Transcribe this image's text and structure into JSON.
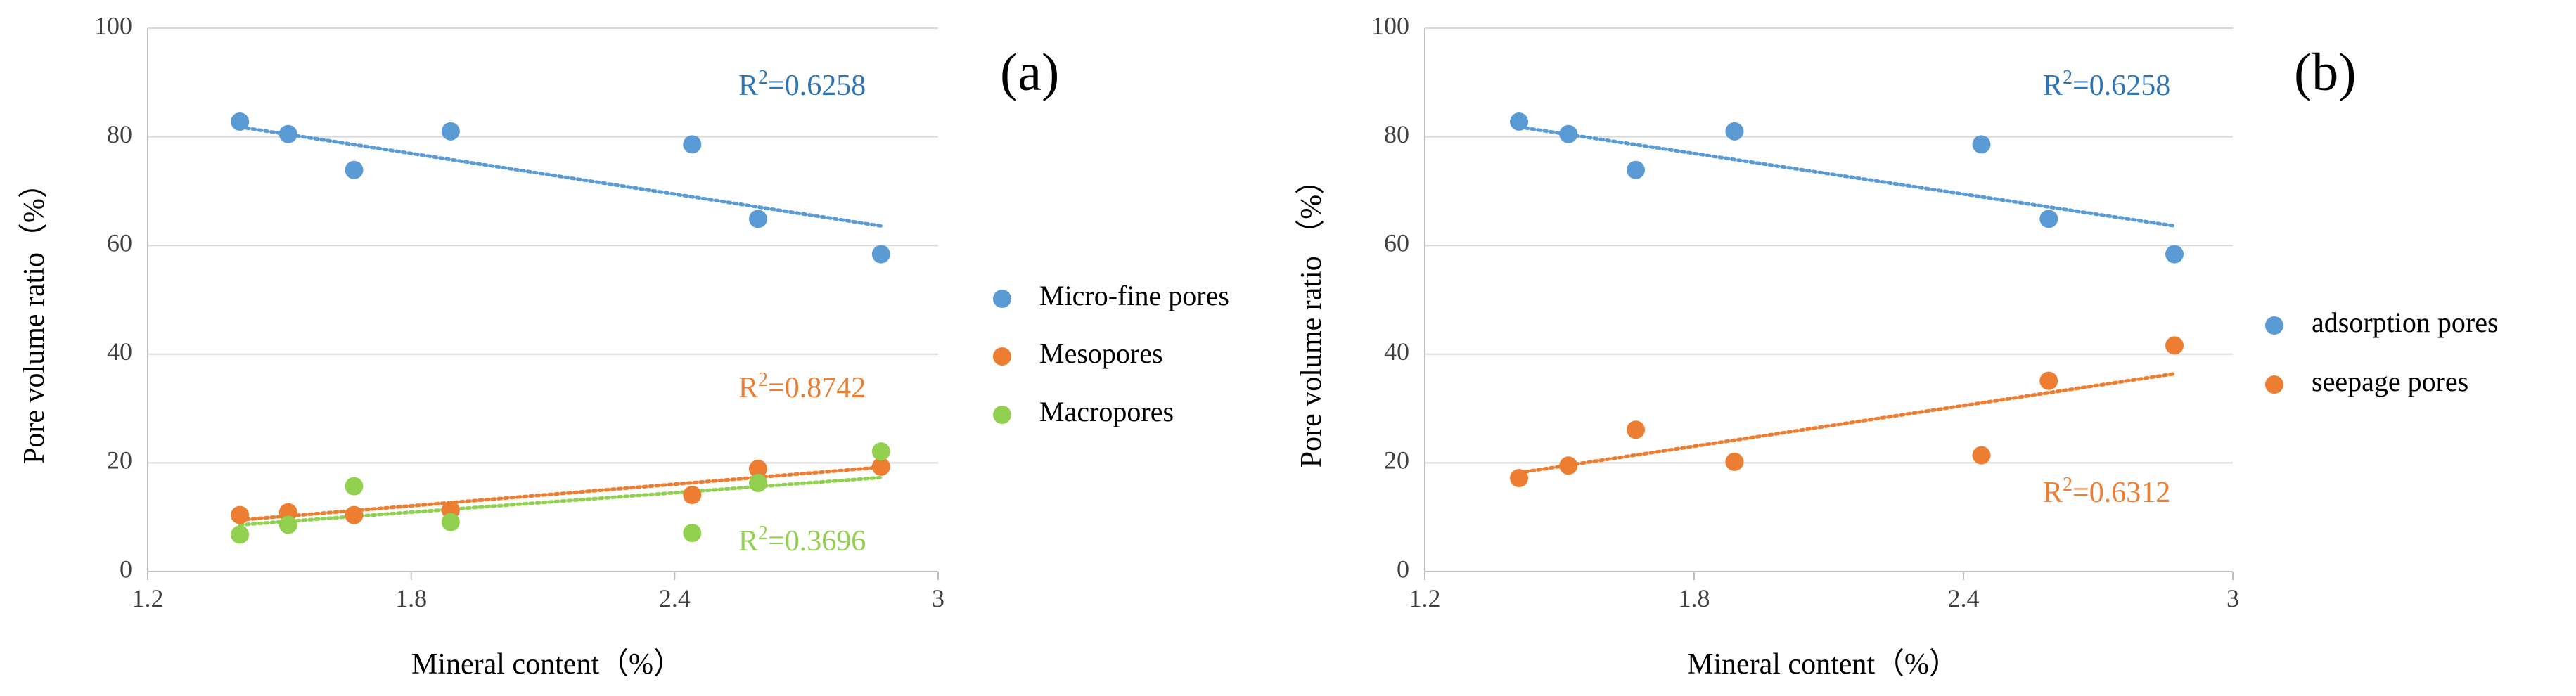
{
  "charts": [
    {
      "id": "a",
      "panel_label": "(a)",
      "type": "scatter",
      "xlabel": "Mineral content（%）",
      "ylabel": "Pore volume ratio（%）",
      "xlim": [
        1.2,
        3
      ],
      "ylim": [
        0,
        100
      ],
      "xticks": [
        "1.2",
        "1.8",
        "2.4",
        "3"
      ],
      "xtick_values": [
        1.2,
        1.8,
        2.4,
        3
      ],
      "yticks": [
        "0",
        "20",
        "40",
        "60",
        "80",
        "100"
      ],
      "ytick_values": [
        0,
        20,
        40,
        60,
        80,
        100
      ],
      "series": [
        {
          "key": "micro",
          "name": "Micro-fine pores",
          "color": "#5b9bd5",
          "x": [
            1.41,
            1.52,
            1.67,
            1.89,
            2.44,
            2.59,
            2.87
          ],
          "y": [
            82.8,
            80.5,
            73.9,
            81.0,
            78.6,
            64.9,
            58.4
          ],
          "trend": {
            "x0": 1.41,
            "y0": 81.8,
            "x1": 2.87,
            "y1": 63.6
          },
          "r2": {
            "base": "R",
            "sup": "2",
            "value": "=0.6258"
          }
        },
        {
          "key": "meso",
          "name": "Mesopores",
          "color": "#ed7d31",
          "x": [
            1.41,
            1.52,
            1.67,
            1.89,
            2.44,
            2.59,
            2.87
          ],
          "y": [
            10.4,
            10.9,
            10.4,
            11.3,
            14.1,
            18.9,
            19.3
          ],
          "trend": {
            "x0": 1.41,
            "y0": 9.5,
            "x1": 2.87,
            "y1": 19.2
          },
          "r2": {
            "base": "R",
            "sup": "2",
            "value": "=0.8742"
          }
        },
        {
          "key": "macro",
          "name": "Macropores",
          "color": "#92d050",
          "x": [
            1.41,
            1.52,
            1.67,
            1.89,
            2.44,
            2.59,
            2.87
          ],
          "y": [
            6.8,
            8.6,
            15.7,
            9.1,
            7.1,
            16.3,
            22.1
          ],
          "trend": {
            "x0": 1.41,
            "y0": 8.6,
            "x1": 2.87,
            "y1": 17.3
          },
          "r2": {
            "base": "R",
            "sup": "2",
            "value": "=0.3696"
          }
        }
      ]
    },
    {
      "id": "b",
      "panel_label": "(b)",
      "type": "scatter",
      "xlabel": "Mineral content（%）",
      "ylabel": "Pore volume ratio （%）",
      "xlim": [
        1.2,
        3
      ],
      "ylim": [
        0,
        100
      ],
      "xticks": [
        "1.2",
        "1.8",
        "2.4",
        "3"
      ],
      "xtick_values": [
        1.2,
        1.8,
        2.4,
        3
      ],
      "yticks": [
        "0",
        "20",
        "40",
        "60",
        "80",
        "100"
      ],
      "ytick_values": [
        0,
        20,
        40,
        60,
        80,
        100
      ],
      "series": [
        {
          "key": "adsorption",
          "name": "adsorption pores",
          "color": "#5b9bd5",
          "x": [
            1.41,
            1.52,
            1.67,
            1.89,
            2.44,
            2.59,
            2.87
          ],
          "y": [
            82.8,
            80.5,
            73.9,
            81.0,
            78.6,
            64.9,
            58.4
          ],
          "trend": {
            "x0": 1.41,
            "y0": 81.8,
            "x1": 2.87,
            "y1": 63.6
          },
          "r2": {
            "base": "R",
            "sup": "2",
            "value": "=0.6258"
          }
        },
        {
          "key": "seepage",
          "name": "seepage pores",
          "color": "#ed7d31",
          "x": [
            1.41,
            1.52,
            1.67,
            1.89,
            2.44,
            2.59,
            2.87
          ],
          "y": [
            17.2,
            19.5,
            26.1,
            20.2,
            21.4,
            35.1,
            41.6
          ],
          "trend": {
            "x0": 1.41,
            "y0": 18.2,
            "x1": 2.87,
            "y1": 36.4
          },
          "r2": {
            "base": "R",
            "sup": "2",
            "value": "=0.6312"
          }
        }
      ]
    }
  ]
}
